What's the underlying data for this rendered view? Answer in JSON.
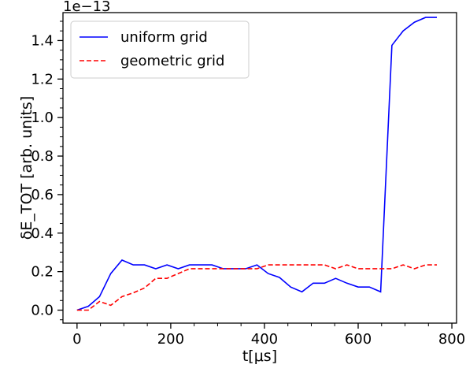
{
  "chart_data": {
    "type": "line",
    "title": "",
    "xlabel": "t[μs]",
    "ylabel": "δE_TOT [arb. units]",
    "y_multiplier_label": "1e−13",
    "xlim": [
      -30,
      810
    ],
    "ylim": [
      -0.0675,
      1.545
    ],
    "x_ticks": [
      0,
      200,
      400,
      600,
      800
    ],
    "x_tick_labels": [
      "0",
      "200",
      "400",
      "600",
      "800"
    ],
    "y_ticks": [
      0.0,
      0.2,
      0.4,
      0.6,
      0.8,
      1.0,
      1.2,
      1.4
    ],
    "y_tick_labels": [
      "0.0",
      "0.2",
      "0.4",
      "0.6",
      "0.8",
      "1.0",
      "1.2",
      "1.4"
    ],
    "grid": false,
    "legend_position": "top-left",
    "series": [
      {
        "name": "uniform grid",
        "color": "#0000ff",
        "style": "solid",
        "x": [
          0,
          24,
          48,
          72,
          96,
          120,
          144,
          168,
          192,
          216,
          240,
          264,
          288,
          312,
          336,
          360,
          384,
          408,
          432,
          456,
          480,
          504,
          528,
          552,
          576,
          600,
          624,
          648,
          672,
          696,
          720,
          744,
          768
        ],
        "y": [
          0.0,
          0.02,
          0.07,
          0.19,
          0.26,
          0.235,
          0.235,
          0.215,
          0.235,
          0.215,
          0.235,
          0.235,
          0.235,
          0.215,
          0.215,
          0.215,
          0.235,
          0.19,
          0.17,
          0.12,
          0.095,
          0.14,
          0.14,
          0.165,
          0.14,
          0.12,
          0.12,
          0.095,
          1.375,
          1.45,
          1.495,
          1.52,
          1.52
        ]
      },
      {
        "name": "geometric grid",
        "color": "#ff0000",
        "style": "dashed",
        "x": [
          0,
          24,
          48,
          72,
          96,
          120,
          144,
          168,
          192,
          216,
          240,
          264,
          288,
          312,
          336,
          360,
          384,
          408,
          432,
          456,
          480,
          504,
          528,
          552,
          576,
          600,
          624,
          648,
          672,
          696,
          720,
          744,
          768
        ],
        "y": [
          0.0,
          0.0,
          0.045,
          0.025,
          0.07,
          0.09,
          0.115,
          0.165,
          0.165,
          0.19,
          0.215,
          0.215,
          0.215,
          0.215,
          0.215,
          0.215,
          0.215,
          0.235,
          0.235,
          0.235,
          0.235,
          0.235,
          0.235,
          0.215,
          0.235,
          0.215,
          0.215,
          0.215,
          0.215,
          0.235,
          0.215,
          0.235,
          0.235
        ]
      }
    ]
  }
}
